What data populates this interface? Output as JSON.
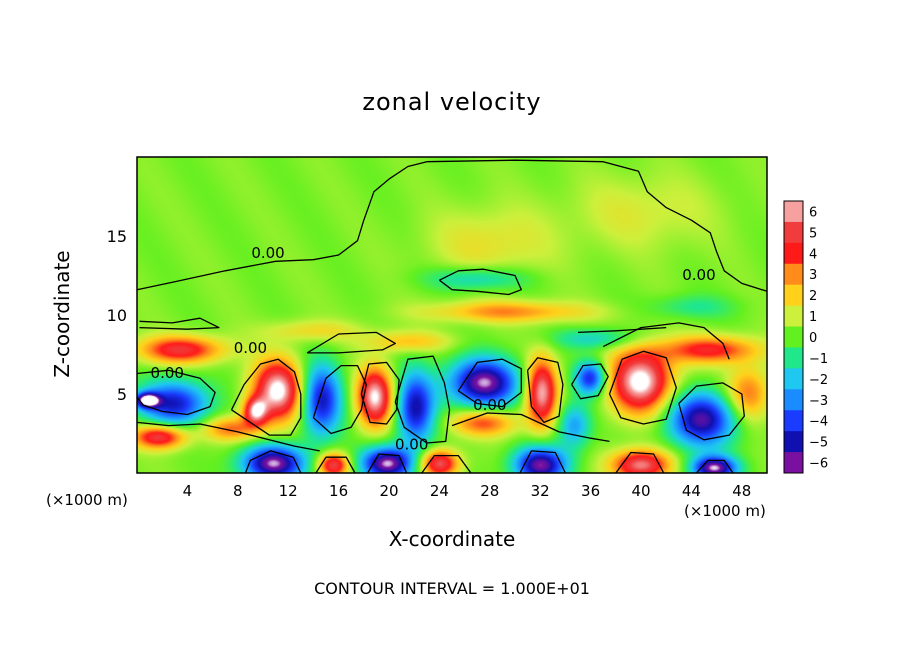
{
  "chart_data": {
    "type": "heatmap",
    "title": "zonal velocity",
    "xlabel": "X-coordinate",
    "ylabel": "Z-coordinate",
    "x_unit_label": "(×1000 m)",
    "x_unit_label_right": "(×1000 m)",
    "footer": "CONTOUR INTERVAL = 1.000E+01",
    "xlim": [
      0,
      50
    ],
    "ylim": [
      0,
      20
    ],
    "x_ticks": [
      4,
      8,
      12,
      16,
      20,
      24,
      28,
      32,
      36,
      40,
      44,
      48
    ],
    "x_tick_labels": [
      "4",
      "8",
      "12",
      "16",
      "20",
      "24",
      "28",
      "32",
      "36",
      "40",
      "44",
      "48"
    ],
    "y_ticks": [
      5,
      10,
      15
    ],
    "y_tick_labels": [
      "5",
      "10",
      "15"
    ],
    "colorbar": {
      "range": [
        -6,
        6
      ],
      "tick_labels": [
        "6",
        "5",
        "4",
        "3",
        "2",
        "1",
        "0",
        "−1",
        "−2",
        "−3",
        "−4",
        "−5",
        "−6"
      ],
      "colors": [
        "#f7a0a0",
        "#f03c3c",
        "#ff1a1a",
        "#ff8c1a",
        "#ffd11a",
        "#ccf03c",
        "#62f020",
        "#20e88a",
        "#1ec8f0",
        "#1a8cff",
        "#1a3cff",
        "#1010b0",
        "#7a10a0"
      ]
    },
    "contour_labels": [
      {
        "text": "0.00",
        "x": 10.4,
        "y": 13.6
      },
      {
        "text": "0.00",
        "x": 9.0,
        "y": 7.6
      },
      {
        "text": "0.00",
        "x": 2.4,
        "y": 6.0
      },
      {
        "text": "0.00",
        "x": 28.0,
        "y": 4.0
      },
      {
        "text": "0.00",
        "x": 21.8,
        "y": 1.5
      },
      {
        "text": "0.00",
        "x": 44.6,
        "y": 12.2
      }
    ],
    "blobs": [
      {
        "x": 3.5,
        "z": 7.8,
        "u": 4.5,
        "rx": 3.5,
        "rz": 0.9
      },
      {
        "x": 11.2,
        "z": 5.2,
        "u": 6.5,
        "rx": 2.1,
        "rz": 2.0
      },
      {
        "x": 9.4,
        "z": 3.9,
        "u": 5.0,
        "rx": 1.0,
        "rz": 0.9
      },
      {
        "x": 3.0,
        "z": 4.4,
        "u": -5.0,
        "rx": 2.9,
        "rz": 1.5
      },
      {
        "x": 0.8,
        "z": 4.6,
        "u": -6.0,
        "rx": 1.0,
        "rz": 0.5
      },
      {
        "x": 1.8,
        "z": 2.3,
        "u": 5.0,
        "rx": 2.2,
        "rz": 0.8
      },
      {
        "x": 7.5,
        "z": 2.8,
        "u": 3.0,
        "rx": 2.5,
        "rz": 0.8
      },
      {
        "x": 14.6,
        "z": 4.6,
        "u": -5.2,
        "rx": 1.7,
        "rz": 2.4
      },
      {
        "x": 18.9,
        "z": 4.8,
        "u": 6.2,
        "rx": 1.5,
        "rz": 1.9
      },
      {
        "x": 22.1,
        "z": 4.1,
        "u": -5.2,
        "rx": 1.6,
        "rz": 2.4
      },
      {
        "x": 27.5,
        "z": 5.7,
        "u": -6.5,
        "rx": 2.9,
        "rz": 1.6
      },
      {
        "x": 27.5,
        "z": 3.2,
        "u": 3.5,
        "rx": 2.7,
        "rz": 0.9
      },
      {
        "x": 32.1,
        "z": 5.1,
        "u": 6.0,
        "rx": 1.3,
        "rz": 2.2
      },
      {
        "x": 36.0,
        "z": 6.0,
        "u": -4.8,
        "rx": 1.3,
        "rz": 1.1
      },
      {
        "x": 34.7,
        "z": 3.0,
        "u": -3.0,
        "rx": 1.4,
        "rz": 1.5
      },
      {
        "x": 40.0,
        "z": 5.8,
        "u": 6.6,
        "rx": 2.6,
        "rz": 2.1
      },
      {
        "x": 44.8,
        "z": 3.4,
        "u": -5.8,
        "rx": 2.9,
        "rz": 1.8
      },
      {
        "x": 48.5,
        "z": 5.0,
        "u": 3.2,
        "rx": 1.8,
        "rz": 1.8
      },
      {
        "x": 45.5,
        "z": 7.8,
        "u": 4.0,
        "rx": 4.0,
        "rz": 0.9
      },
      {
        "x": 10.8,
        "z": 0.6,
        "u": -6.5,
        "rx": 2.6,
        "rz": 1.2
      },
      {
        "x": 15.6,
        "z": 0.5,
        "u": 5.0,
        "rx": 1.3,
        "rz": 0.8
      },
      {
        "x": 19.9,
        "z": 0.6,
        "u": -6.5,
        "rx": 2.2,
        "rz": 1.1
      },
      {
        "x": 24.0,
        "z": 0.6,
        "u": 5.2,
        "rx": 1.6,
        "rz": 0.9
      },
      {
        "x": 32.0,
        "z": 0.5,
        "u": -6.2,
        "rx": 2.2,
        "rz": 1.2
      },
      {
        "x": 40.0,
        "z": 0.5,
        "u": 5.6,
        "rx": 2.4,
        "rz": 1.0
      },
      {
        "x": 45.8,
        "z": 0.3,
        "u": -6.4,
        "rx": 1.9,
        "rz": 0.8
      },
      {
        "x": 29.5,
        "z": 10.2,
        "u": 2.7,
        "rx": 6.5,
        "rz": 0.7
      },
      {
        "x": 27.0,
        "z": 12.3,
        "u": -2.2,
        "rx": 4.0,
        "rz": 0.8
      },
      {
        "x": 36.5,
        "z": 8.5,
        "u": -2.0,
        "rx": 3.5,
        "rz": 0.7
      },
      {
        "x": 21.5,
        "z": 8.3,
        "u": 2.0,
        "rx": 3.5,
        "rz": 0.7
      },
      {
        "x": 14.0,
        "z": 9.0,
        "u": 1.5,
        "rx": 4.0,
        "rz": 0.7
      },
      {
        "x": 28.0,
        "z": 14.5,
        "u": 1.3,
        "rx": 5.0,
        "rz": 2.4
      },
      {
        "x": 40.0,
        "z": 16.5,
        "u": 1.0,
        "rx": 6.0,
        "rz": 2.5
      },
      {
        "x": 44.0,
        "z": 10.5,
        "u": -1.3,
        "rx": 3.5,
        "rz": 0.8
      }
    ],
    "contours": [
      [
        [
          0,
          11.6
        ],
        [
          3,
          12.1
        ],
        [
          7,
          12.8
        ],
        [
          11,
          13.4
        ],
        [
          14,
          13.5
        ],
        [
          16,
          13.8
        ],
        [
          17.5,
          14.7
        ],
        [
          18,
          16.0
        ],
        [
          18.8,
          17.8
        ],
        [
          20,
          18.6
        ],
        [
          21.5,
          19.4
        ],
        [
          23,
          19.7
        ],
        [
          30,
          19.8
        ],
        [
          37,
          19.7
        ],
        [
          39.8,
          19.1
        ],
        [
          40.5,
          17.8
        ],
        [
          42,
          16.8
        ],
        [
          44,
          16.0
        ],
        [
          45.5,
          15.2
        ],
        [
          46,
          14.0
        ],
        [
          46.6,
          12.8
        ],
        [
          48,
          12.0
        ],
        [
          50,
          11.5
        ]
      ],
      [
        [
          0.2,
          9.6
        ],
        [
          2.8,
          9.5
        ],
        [
          5,
          9.8
        ],
        [
          6.5,
          9.2
        ],
        [
          4,
          9.1
        ],
        [
          0.2,
          9.2
        ]
      ],
      [
        [
          13.5,
          7.6
        ],
        [
          16,
          8.8
        ],
        [
          19,
          8.9
        ],
        [
          20.5,
          8.2
        ],
        [
          19.5,
          7.8
        ],
        [
          16,
          7.6
        ],
        [
          13.5,
          7.6
        ]
      ],
      [
        [
          24,
          12.2
        ],
        [
          25.5,
          12.8
        ],
        [
          27.5,
          12.9
        ],
        [
          30,
          12.5
        ],
        [
          30.5,
          11.6
        ],
        [
          29.5,
          11.3
        ],
        [
          27,
          11.5
        ],
        [
          25,
          11.6
        ],
        [
          24,
          12.2
        ]
      ],
      [
        [
          0,
          6.3
        ],
        [
          2.5,
          6.5
        ],
        [
          5,
          6.0
        ],
        [
          6.2,
          5.1
        ],
        [
          5.8,
          4.2
        ],
        [
          4,
          3.7
        ],
        [
          2,
          3.9
        ],
        [
          0.5,
          4.3
        ],
        [
          0,
          4.8
        ]
      ],
      [
        [
          7.5,
          4.0
        ],
        [
          8.5,
          5.6
        ],
        [
          9.8,
          6.9
        ],
        [
          11.2,
          7.2
        ],
        [
          12.5,
          6.4
        ],
        [
          13.0,
          5.0
        ],
        [
          13.0,
          3.5
        ],
        [
          12.2,
          2.4
        ],
        [
          10.5,
          2.4
        ],
        [
          9.0,
          3.2
        ],
        [
          7.5,
          4.0
        ]
      ],
      [
        [
          14.0,
          3.5
        ],
        [
          15.0,
          6.0
        ],
        [
          16.2,
          6.8
        ],
        [
          17.5,
          6.8
        ],
        [
          18.2,
          5.6
        ],
        [
          17.8,
          4.0
        ],
        [
          17.0,
          2.9
        ],
        [
          15.4,
          2.5
        ],
        [
          14.0,
          3.5
        ]
      ],
      [
        [
          0,
          3.2
        ],
        [
          2.5,
          3.0
        ],
        [
          5,
          3.1
        ],
        [
          8,
          2.6
        ],
        [
          12.5,
          1.7
        ],
        [
          14.5,
          1.4
        ]
      ],
      [
        [
          17.8,
          5.0
        ],
        [
          18.4,
          6.9
        ],
        [
          19.8,
          7.0
        ],
        [
          20.8,
          5.9
        ],
        [
          20.6,
          4.0
        ],
        [
          19.8,
          3.1
        ],
        [
          18.5,
          3.2
        ],
        [
          17.8,
          5.0
        ]
      ],
      [
        [
          20.5,
          4.5
        ],
        [
          21.5,
          7.2
        ],
        [
          23.5,
          7.4
        ],
        [
          24.4,
          5.7
        ],
        [
          24.8,
          4.0
        ],
        [
          24.5,
          2.0
        ],
        [
          23.0,
          1.9
        ],
        [
          21.2,
          2.9
        ],
        [
          20.5,
          4.5
        ]
      ],
      [
        [
          25.5,
          5.2
        ],
        [
          27.0,
          7.0
        ],
        [
          29.0,
          7.2
        ],
        [
          30.5,
          6.6
        ],
        [
          30.5,
          5.1
        ],
        [
          29.0,
          4.2
        ],
        [
          27.0,
          4.4
        ],
        [
          25.5,
          5.2
        ]
      ],
      [
        [
          25,
          3.0
        ],
        [
          27.8,
          3.8
        ],
        [
          30.5,
          3.7
        ],
        [
          33.5,
          2.6
        ],
        [
          36,
          2.2
        ],
        [
          37.5,
          2.0
        ]
      ],
      [
        [
          31.0,
          6.5
        ],
        [
          31.8,
          7.3
        ],
        [
          33.4,
          7.0
        ],
        [
          33.8,
          5.6
        ],
        [
          33.5,
          3.6
        ],
        [
          32.3,
          3.2
        ],
        [
          31.3,
          4.2
        ],
        [
          31.0,
          6.5
        ]
      ],
      [
        [
          34.5,
          5.6
        ],
        [
          35.4,
          6.8
        ],
        [
          36.8,
          6.9
        ],
        [
          37.4,
          6.1
        ],
        [
          36.6,
          4.9
        ],
        [
          35.2,
          4.7
        ],
        [
          34.5,
          5.6
        ]
      ],
      [
        [
          37.5,
          5.0
        ],
        [
          38.5,
          7.2
        ],
        [
          40.2,
          7.7
        ],
        [
          42.0,
          7.3
        ],
        [
          42.8,
          5.4
        ],
        [
          42.0,
          3.4
        ],
        [
          40.2,
          3.1
        ],
        [
          38.4,
          3.5
        ],
        [
          37.5,
          5.0
        ]
      ],
      [
        [
          43,
          4.4
        ],
        [
          44.4,
          5.5
        ],
        [
          46.5,
          5.7
        ],
        [
          48.0,
          5.0
        ],
        [
          48.2,
          3.6
        ],
        [
          47.0,
          2.4
        ],
        [
          45.0,
          2.1
        ],
        [
          43.6,
          2.7
        ],
        [
          43,
          4.4
        ]
      ],
      [
        [
          37,
          8.0
        ],
        [
          40,
          9.2
        ],
        [
          43,
          9.5
        ],
        [
          45,
          9.2
        ],
        [
          46.5,
          8.2
        ],
        [
          47,
          7.2
        ]
      ],
      [
        [
          35,
          8.9
        ],
        [
          38,
          9.0
        ],
        [
          42,
          9.2
        ]
      ],
      [
        [
          8.6,
          0
        ],
        [
          9.0,
          0.8
        ],
        [
          10.6,
          1.4
        ],
        [
          12.4,
          1.0
        ],
        [
          13.0,
          0
        ]
      ],
      [
        [
          14.2,
          0
        ],
        [
          15.0,
          1.0
        ],
        [
          16.6,
          1.0
        ],
        [
          17.3,
          0
        ]
      ],
      [
        [
          18.3,
          0
        ],
        [
          19.2,
          1.2
        ],
        [
          20.8,
          1.1
        ],
        [
          21.4,
          0
        ]
      ],
      [
        [
          22.6,
          0
        ],
        [
          23.6,
          1.1
        ],
        [
          25.5,
          1.1
        ],
        [
          26.5,
          0
        ]
      ],
      [
        [
          30.4,
          0
        ],
        [
          31.3,
          1.4
        ],
        [
          33.2,
          1.3
        ],
        [
          34.0,
          0
        ]
      ],
      [
        [
          38.0,
          0
        ],
        [
          39.2,
          1.3
        ],
        [
          41.0,
          1.2
        ],
        [
          41.8,
          0
        ]
      ],
      [
        [
          44.4,
          0
        ],
        [
          45.3,
          0.8
        ],
        [
          46.6,
          0.8
        ],
        [
          47.3,
          0
        ]
      ]
    ]
  }
}
